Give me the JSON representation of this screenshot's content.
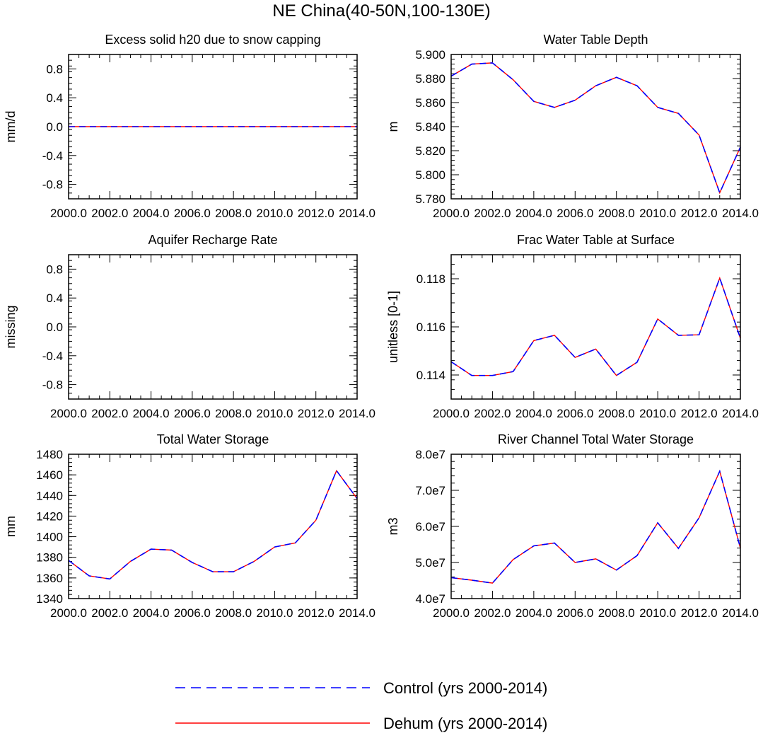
{
  "figure": {
    "title": "NE China(40-50N,100-130E)"
  },
  "legend": [
    {
      "name": "Control (yrs 2000-2014)",
      "color": "#0000ff",
      "style": "dashed"
    },
    {
      "name": "Dehum (yrs 2000-2014)",
      "color": "#ff0000",
      "style": "solid"
    }
  ],
  "chart_data": [
    {
      "type": "line",
      "title": "Excess solid h20 due to snow capping",
      "ylabel": "mm/d",
      "xlim": [
        2000,
        2014
      ],
      "ylim": [
        -1,
        1
      ],
      "x_ticks": [
        "2000.0",
        "2002.0",
        "2004.0",
        "2006.0",
        "2008.0",
        "2010.0",
        "2012.0",
        "2014.0"
      ],
      "y_ticks": [
        -0.8,
        -0.4,
        0.0,
        0.4,
        0.8
      ],
      "y_tick_labels": [
        "-0.8",
        "-0.4",
        "0.0",
        "0.4",
        "0.8"
      ],
      "x": [
        2000,
        2001,
        2002,
        2003,
        2004,
        2005,
        2006,
        2007,
        2008,
        2009,
        2010,
        2011,
        2012,
        2013,
        2014
      ],
      "series": [
        {
          "name": "Control (yrs 2000-2014)",
          "values": [
            0,
            0,
            0,
            0,
            0,
            0,
            0,
            0,
            0,
            0,
            0,
            0,
            0,
            0,
            0
          ]
        },
        {
          "name": "Dehum (yrs 2000-2014)",
          "values": [
            0,
            0,
            0,
            0,
            0,
            0,
            0,
            0,
            0,
            0,
            0,
            0,
            0,
            0,
            0
          ]
        }
      ]
    },
    {
      "type": "line",
      "title": "Water Table Depth",
      "ylabel": "m",
      "xlim": [
        2000,
        2014
      ],
      "ylim": [
        5.78,
        5.9
      ],
      "x_ticks": [
        "2000.0",
        "2002.0",
        "2004.0",
        "2006.0",
        "2008.0",
        "2010.0",
        "2012.0",
        "2014.0"
      ],
      "y_ticks": [
        5.78,
        5.8,
        5.82,
        5.84,
        5.86,
        5.88,
        5.9
      ],
      "y_tick_labels": [
        "5.780",
        "5.800",
        "5.820",
        "5.840",
        "5.860",
        "5.880",
        "5.900"
      ],
      "x": [
        2000,
        2001,
        2002,
        2003,
        2004,
        2005,
        2006,
        2007,
        2008,
        2009,
        2010,
        2011,
        2012,
        2013,
        2014
      ],
      "series": [
        {
          "name": "Control (yrs 2000-2014)",
          "values": [
            5.882,
            5.892,
            5.893,
            5.879,
            5.861,
            5.856,
            5.862,
            5.874,
            5.881,
            5.874,
            5.856,
            5.851,
            5.833,
            5.785,
            5.823
          ]
        },
        {
          "name": "Dehum (yrs 2000-2014)",
          "values": [
            5.882,
            5.892,
            5.893,
            5.879,
            5.861,
            5.856,
            5.862,
            5.874,
            5.881,
            5.874,
            5.856,
            5.851,
            5.833,
            5.785,
            5.823
          ]
        }
      ]
    },
    {
      "type": "line",
      "title": "Aquifer Recharge Rate",
      "ylabel": "missing",
      "xlim": [
        2000,
        2014
      ],
      "ylim": [
        -1,
        1
      ],
      "x_ticks": [
        "2000.0",
        "2002.0",
        "2004.0",
        "2006.0",
        "2008.0",
        "2010.0",
        "2012.0",
        "2014.0"
      ],
      "y_ticks": [
        -0.8,
        -0.4,
        0.0,
        0.4,
        0.8
      ],
      "y_tick_labels": [
        "-0.8",
        "-0.4",
        "0.0",
        "0.4",
        "0.8"
      ],
      "x": [],
      "series": []
    },
    {
      "type": "line",
      "title": "Frac Water Table at Surface",
      "ylabel": "unitless [0-1]",
      "xlim": [
        2000,
        2014
      ],
      "ylim": [
        0.113,
        0.119
      ],
      "x_ticks": [
        "2000.0",
        "2002.0",
        "2004.0",
        "2006.0",
        "2008.0",
        "2010.0",
        "2012.0",
        "2014.0"
      ],
      "y_ticks": [
        0.114,
        0.116,
        0.118
      ],
      "y_tick_labels": [
        "0.114",
        "0.116",
        "0.118"
      ],
      "x": [
        2000,
        2001,
        2002,
        2003,
        2004,
        2005,
        2006,
        2007,
        2008,
        2009,
        2010,
        2011,
        2012,
        2013,
        2014
      ],
      "series": [
        {
          "name": "Control (yrs 2000-2014)",
          "values": [
            0.11455,
            0.11398,
            0.11398,
            0.11414,
            0.11543,
            0.11565,
            0.11473,
            0.11508,
            0.11398,
            0.11453,
            0.11633,
            0.11565,
            0.11567,
            0.11803,
            0.11553
          ]
        },
        {
          "name": "Dehum (yrs 2000-2014)",
          "values": [
            0.11455,
            0.11398,
            0.11398,
            0.11414,
            0.11543,
            0.11565,
            0.11473,
            0.11508,
            0.11398,
            0.11453,
            0.11633,
            0.11565,
            0.11567,
            0.11803,
            0.11553
          ]
        }
      ]
    },
    {
      "type": "line",
      "title": "Total Water Storage",
      "ylabel": "mm",
      "xlim": [
        2000,
        2014
      ],
      "ylim": [
        1340,
        1480
      ],
      "x_ticks": [
        "2000.0",
        "2002.0",
        "2004.0",
        "2006.0",
        "2008.0",
        "2010.0",
        "2012.0",
        "2014.0"
      ],
      "y_ticks": [
        1340,
        1360,
        1380,
        1400,
        1420,
        1440,
        1460,
        1480
      ],
      "y_tick_labels": [
        "1340",
        "1360",
        "1380",
        "1400",
        "1420",
        "1440",
        "1460",
        "1480"
      ],
      "x": [
        2000,
        2001,
        2002,
        2003,
        2004,
        2005,
        2006,
        2007,
        2008,
        2009,
        2010,
        2011,
        2012,
        2013,
        2014
      ],
      "series": [
        {
          "name": "Control (yrs 2000-2014)",
          "values": [
            1377,
            1362,
            1359,
            1376,
            1388,
            1387,
            1375,
            1366,
            1366,
            1376,
            1390,
            1394,
            1416,
            1464,
            1437
          ]
        },
        {
          "name": "Dehum (yrs 2000-2014)",
          "values": [
            1377,
            1362,
            1359,
            1376,
            1388,
            1387,
            1375,
            1366,
            1366,
            1376,
            1390,
            1394,
            1416,
            1464,
            1437
          ]
        }
      ]
    },
    {
      "type": "line",
      "title": "River Channel Total Water Storage",
      "ylabel": "m3",
      "xlim": [
        2000,
        2014
      ],
      "ylim": [
        40000000,
        80000000
      ],
      "x_ticks": [
        "2000.0",
        "2002.0",
        "2004.0",
        "2006.0",
        "2008.0",
        "2010.0",
        "2012.0",
        "2014.0"
      ],
      "y_ticks": [
        40000000,
        50000000,
        60000000,
        70000000,
        80000000
      ],
      "y_tick_labels": [
        "4.0e7",
        "5.0e7",
        "6.0e7",
        "7.0e7",
        "8.0e7"
      ],
      "x": [
        2000,
        2001,
        2002,
        2003,
        2004,
        2005,
        2006,
        2007,
        2008,
        2009,
        2010,
        2011,
        2012,
        2013,
        2014
      ],
      "series": [
        {
          "name": "Control (yrs 2000-2014)",
          "values": [
            45800000,
            45100000,
            44300000,
            50800000,
            54600000,
            55400000,
            50000000,
            51000000,
            47900000,
            51900000,
            61000000,
            53900000,
            62400000,
            75300000,
            54000000
          ]
        },
        {
          "name": "Dehum (yrs 2000-2014)",
          "values": [
            45800000,
            45100000,
            44300000,
            50800000,
            54600000,
            55400000,
            50000000,
            51000000,
            47900000,
            51900000,
            61000000,
            53900000,
            62400000,
            75300000,
            54000000
          ]
        }
      ]
    }
  ]
}
